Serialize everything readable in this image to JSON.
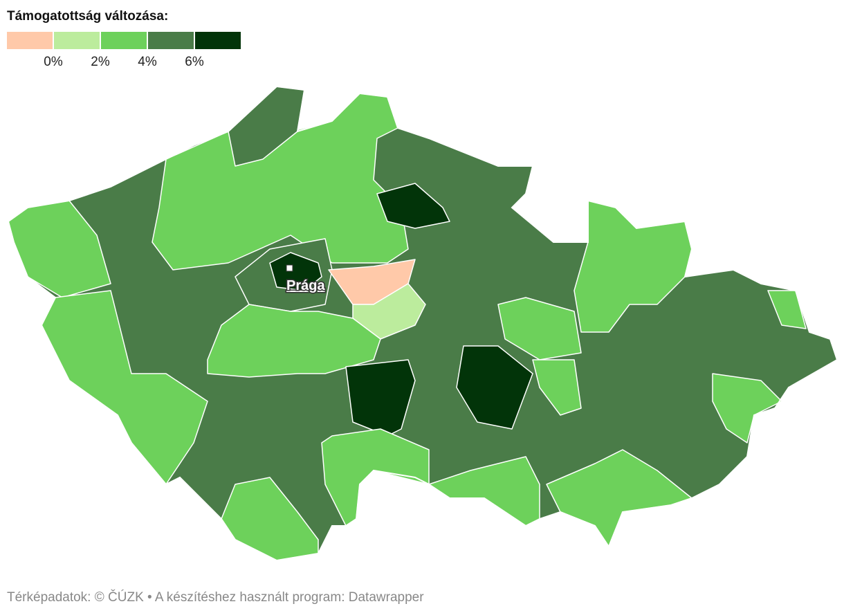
{
  "legend": {
    "title": "Támogatottság változása:",
    "colors": [
      "#ffc9a9",
      "#bcec9d",
      "#6dd15b",
      "#4a7c48",
      "#023409"
    ],
    "ticks": [
      {
        "value": 0,
        "label": "0%"
      },
      {
        "value": 2,
        "label": "2%"
      },
      {
        "value": 4,
        "label": "4%"
      },
      {
        "value": 6,
        "label": "6%"
      }
    ]
  },
  "map": {
    "city_label": "Prága"
  },
  "footer": "Térképadatok: © ČÚZK  • A készítéshez használt program: Datawrapper"
}
